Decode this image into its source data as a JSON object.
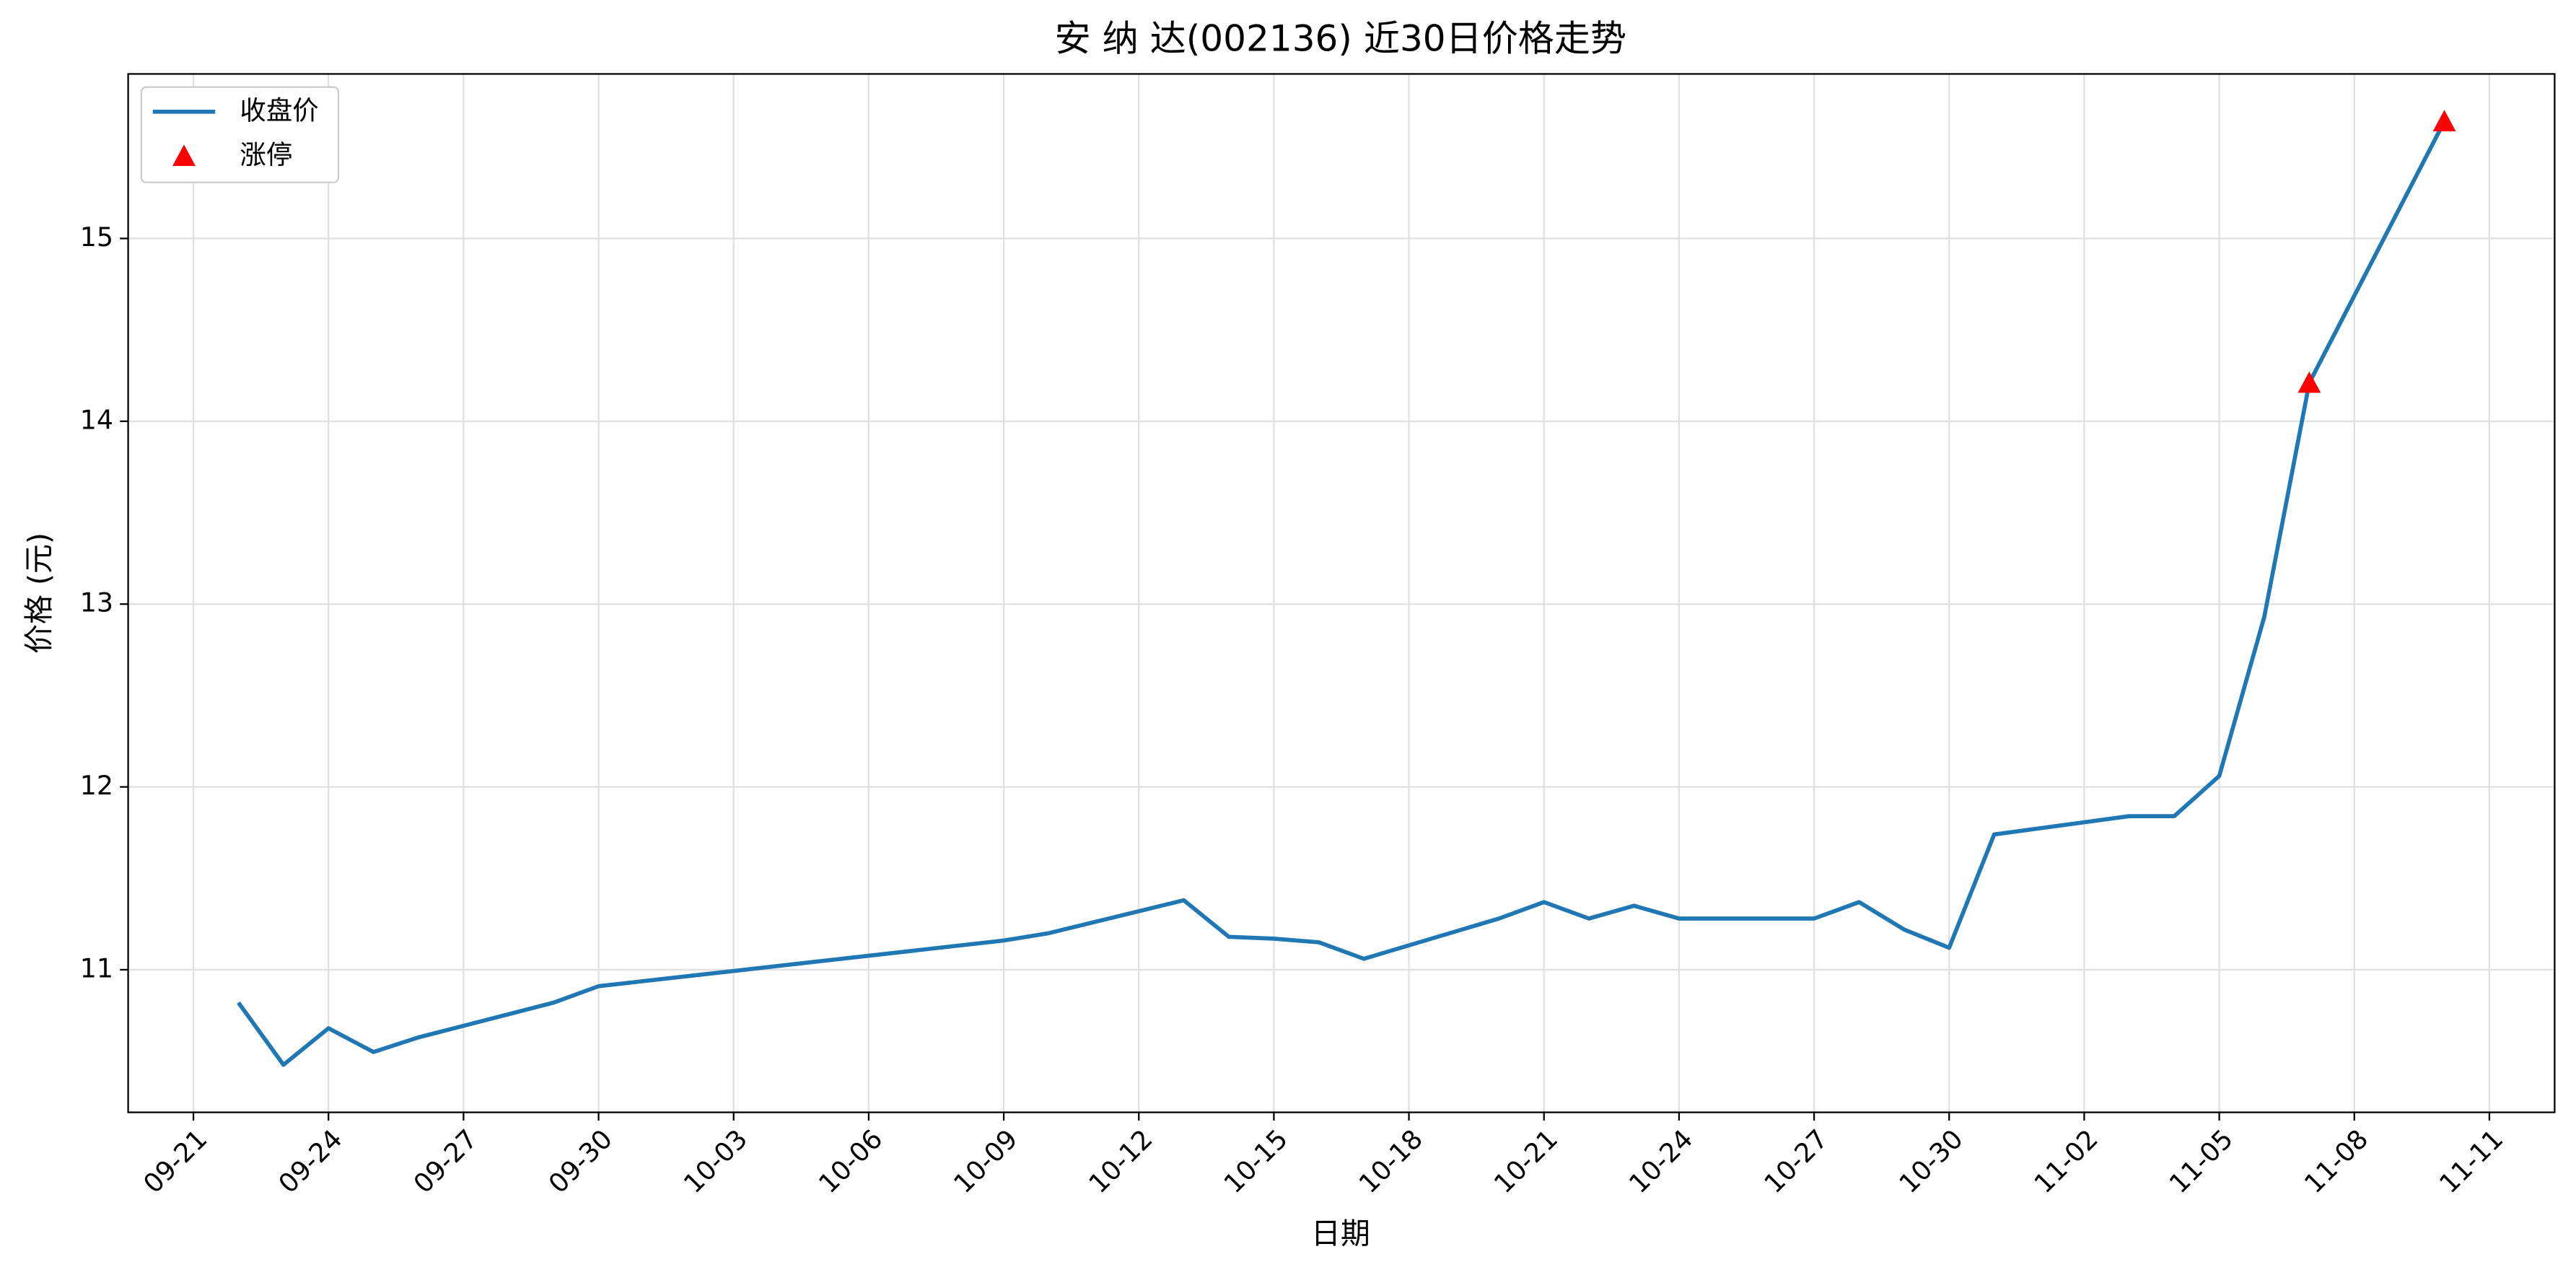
{
  "chart_data": {
    "type": "line",
    "title": "安 纳 达(002136) 近30日价格走势",
    "x_label": "日期",
    "y_label": "价格 (元)",
    "x": [
      "09-22",
      "09-23",
      "09-24",
      "09-25",
      "09-26",
      "09-29",
      "09-30",
      "10-09",
      "10-10",
      "10-13",
      "10-14",
      "10-15",
      "10-16",
      "10-17",
      "10-20",
      "10-21",
      "10-22",
      "10-23",
      "10-24",
      "10-27",
      "10-28",
      "10-29",
      "10-30",
      "10-31",
      "11-03",
      "11-04",
      "11-05",
      "11-06",
      "11-07",
      "11-10"
    ],
    "series": [
      {
        "name": "收盘价",
        "color": "#1f77b4",
        "values": [
          10.82,
          10.48,
          10.68,
          10.55,
          10.63,
          10.82,
          10.91,
          11.16,
          11.2,
          11.38,
          11.18,
          11.17,
          11.15,
          11.06,
          11.28,
          11.37,
          11.28,
          11.35,
          11.28,
          11.28,
          11.37,
          11.22,
          11.12,
          11.74,
          11.84,
          11.84,
          12.06,
          12.93,
          14.21,
          15.64
        ]
      },
      {
        "name": "涨停",
        "color": "#ff0000",
        "type": "scatter",
        "marker": "triangle",
        "x": [
          "11-07",
          "11-10"
        ],
        "values": [
          14.21,
          15.64
        ]
      }
    ],
    "ylim": [
      10.22,
      15.9
    ],
    "yticks": [
      11,
      12,
      13,
      14,
      15
    ],
    "xticks": [
      "09-21",
      "09-24",
      "09-27",
      "09-30",
      "10-03",
      "10-06",
      "10-09",
      "10-12",
      "10-15",
      "10-18",
      "10-21",
      "10-24",
      "10-27",
      "10-30",
      "11-02",
      "11-05",
      "11-08",
      "11-11"
    ],
    "grid": true,
    "legend": "upper-left"
  }
}
